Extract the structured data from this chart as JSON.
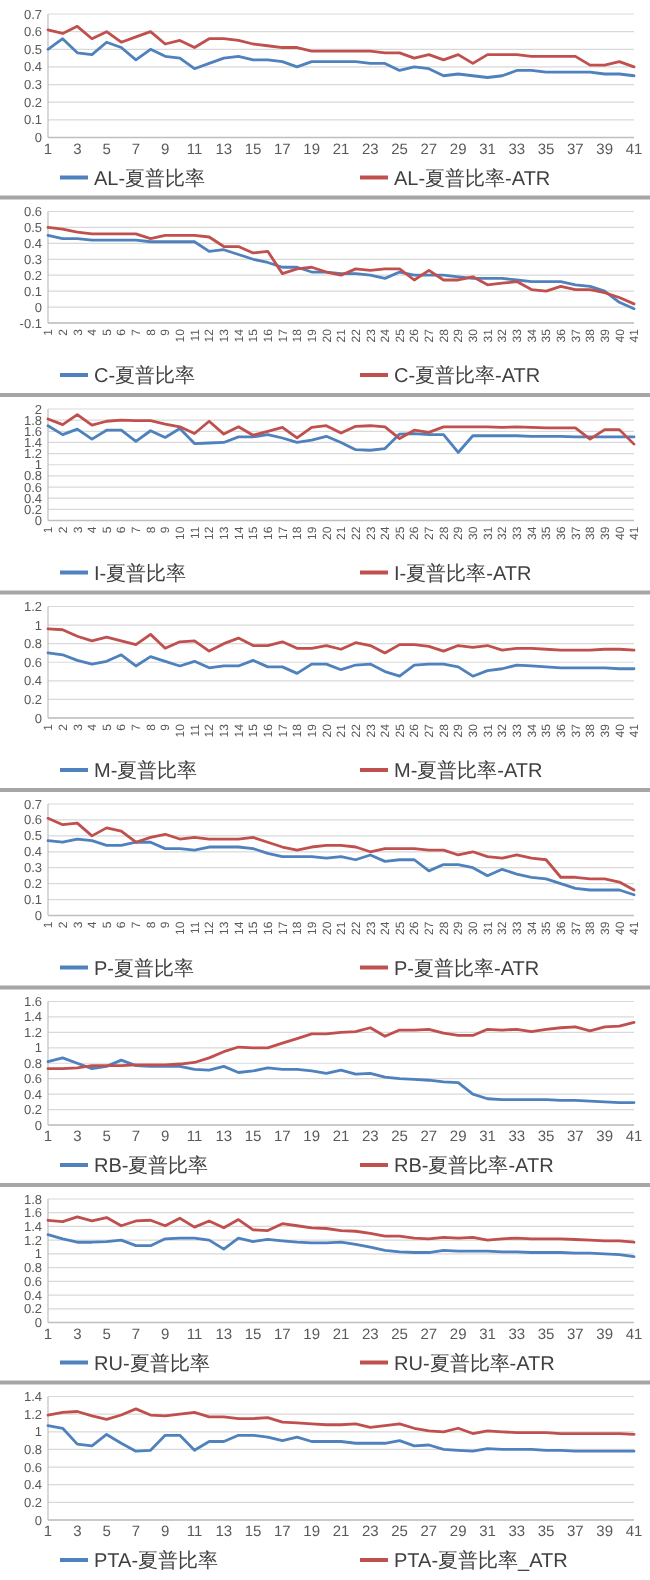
{
  "chart_data": [
    {
      "type": "line",
      "x": [
        1,
        2,
        3,
        4,
        5,
        6,
        7,
        8,
        9,
        10,
        11,
        12,
        13,
        14,
        15,
        16,
        17,
        18,
        19,
        20,
        21,
        22,
        23,
        24,
        25,
        26,
        27,
        28,
        29,
        30,
        31,
        32,
        33,
        34,
        35,
        36,
        37,
        38,
        39,
        40,
        41
      ],
      "xlim": [
        1,
        41
      ],
      "xticks": [
        1,
        3,
        5,
        7,
        9,
        11,
        13,
        15,
        17,
        19,
        21,
        23,
        25,
        27,
        29,
        31,
        33,
        35,
        37,
        39,
        41
      ],
      "ylim": [
        0,
        0.7
      ],
      "yticks": [
        0,
        0.1,
        0.2,
        0.3,
        0.4,
        0.5,
        0.6,
        0.7
      ],
      "grid": "y",
      "legend": "bottom",
      "series": [
        {
          "name": "AL-夏普比率",
          "color": "#4f81bd",
          "values": [
            0.5,
            0.56,
            0.48,
            0.47,
            0.54,
            0.51,
            0.44,
            0.5,
            0.46,
            0.45,
            0.39,
            0.42,
            0.45,
            0.46,
            0.44,
            0.44,
            0.43,
            0.4,
            0.43,
            0.43,
            0.43,
            0.43,
            0.42,
            0.42,
            0.38,
            0.4,
            0.39,
            0.35,
            0.36,
            0.35,
            0.34,
            0.35,
            0.38,
            0.38,
            0.37,
            0.37,
            0.37,
            0.37,
            0.36,
            0.36,
            0.35
          ]
        },
        {
          "name": "AL-夏普比率-ATR",
          "color": "#c0504d",
          "values": [
            0.61,
            0.59,
            0.63,
            0.56,
            0.6,
            0.54,
            0.57,
            0.6,
            0.53,
            0.55,
            0.51,
            0.56,
            0.56,
            0.55,
            0.53,
            0.52,
            0.51,
            0.51,
            0.49,
            0.49,
            0.49,
            0.49,
            0.49,
            0.48,
            0.48,
            0.45,
            0.47,
            0.44,
            0.47,
            0.42,
            0.47,
            0.47,
            0.47,
            0.46,
            0.46,
            0.46,
            0.46,
            0.41,
            0.41,
            0.43,
            0.4
          ]
        }
      ]
    },
    {
      "type": "line",
      "x": [
        1,
        2,
        3,
        4,
        5,
        6,
        7,
        8,
        9,
        10,
        11,
        12,
        13,
        14,
        15,
        16,
        17,
        18,
        19,
        20,
        21,
        22,
        23,
        24,
        25,
        26,
        27,
        28,
        29,
        30,
        31,
        32,
        33,
        34,
        35,
        36,
        37,
        38,
        39,
        40,
        41
      ],
      "xlim": [
        1,
        41
      ],
      "xticks": [
        1,
        2,
        3,
        4,
        5,
        6,
        7,
        8,
        9,
        10,
        11,
        12,
        13,
        14,
        15,
        16,
        17,
        18,
        19,
        20,
        21,
        22,
        23,
        24,
        25,
        26,
        27,
        28,
        29,
        30,
        31,
        32,
        33,
        34,
        35,
        36,
        37,
        38,
        39,
        40,
        41
      ],
      "ylim": [
        -0.1,
        0.6
      ],
      "yticks": [
        -0.1,
        0,
        0.1,
        0.2,
        0.3,
        0.4,
        0.5,
        0.6
      ],
      "grid": "y",
      "legend": "bottom",
      "series": [
        {
          "name": "C-夏普比率",
          "color": "#4f81bd",
          "values": [
            0.45,
            0.43,
            0.43,
            0.42,
            0.42,
            0.42,
            0.42,
            0.41,
            0.41,
            0.41,
            0.41,
            0.35,
            0.36,
            0.33,
            0.3,
            0.28,
            0.25,
            0.25,
            0.22,
            0.22,
            0.21,
            0.21,
            0.2,
            0.18,
            0.22,
            0.2,
            0.2,
            0.2,
            0.19,
            0.18,
            0.18,
            0.18,
            0.17,
            0.16,
            0.16,
            0.16,
            0.14,
            0.13,
            0.1,
            0.03,
            -0.01
          ]
        },
        {
          "name": "C-夏普比率-ATR",
          "color": "#c0504d",
          "values": [
            0.5,
            0.49,
            0.47,
            0.46,
            0.46,
            0.46,
            0.46,
            0.43,
            0.45,
            0.45,
            0.45,
            0.44,
            0.38,
            0.38,
            0.34,
            0.35,
            0.21,
            0.24,
            0.25,
            0.22,
            0.2,
            0.24,
            0.23,
            0.24,
            0.24,
            0.17,
            0.23,
            0.17,
            0.17,
            0.19,
            0.14,
            0.15,
            0.16,
            0.11,
            0.1,
            0.13,
            0.11,
            0.11,
            0.09,
            0.06,
            0.02
          ]
        }
      ]
    },
    {
      "type": "line",
      "x": [
        1,
        2,
        3,
        4,
        5,
        6,
        7,
        8,
        9,
        10,
        11,
        12,
        13,
        14,
        15,
        16,
        17,
        18,
        19,
        20,
        21,
        22,
        23,
        24,
        25,
        26,
        27,
        28,
        29,
        30,
        31,
        32,
        33,
        34,
        35,
        36,
        37,
        38,
        39,
        40,
        41
      ],
      "xlim": [
        1,
        41
      ],
      "xticks": [
        1,
        2,
        3,
        4,
        5,
        6,
        7,
        8,
        9,
        10,
        11,
        12,
        13,
        14,
        15,
        16,
        17,
        18,
        19,
        20,
        21,
        22,
        23,
        24,
        25,
        26,
        27,
        28,
        29,
        30,
        31,
        32,
        33,
        34,
        35,
        36,
        37,
        38,
        39,
        40,
        41
      ],
      "ylim": [
        0,
        2
      ],
      "yticks": [
        0,
        0.2,
        0.4,
        0.6,
        0.8,
        1,
        1.2,
        1.4,
        1.6,
        1.8,
        2
      ],
      "grid": "y",
      "legend": "bottom",
      "series": [
        {
          "name": "I-夏普比率",
          "color": "#4f81bd",
          "values": [
            1.7,
            1.54,
            1.64,
            1.46,
            1.62,
            1.62,
            1.42,
            1.61,
            1.49,
            1.65,
            1.38,
            1.39,
            1.4,
            1.5,
            1.5,
            1.54,
            1.48,
            1.4,
            1.44,
            1.51,
            1.4,
            1.27,
            1.26,
            1.29,
            1.55,
            1.56,
            1.54,
            1.54,
            1.22,
            1.52,
            1.52,
            1.52,
            1.52,
            1.51,
            1.51,
            1.51,
            1.5,
            1.5,
            1.5,
            1.5,
            1.5
          ]
        },
        {
          "name": "I-夏普比率-ATR",
          "color": "#c0504d",
          "values": [
            1.82,
            1.72,
            1.9,
            1.71,
            1.78,
            1.8,
            1.79,
            1.79,
            1.73,
            1.68,
            1.56,
            1.78,
            1.55,
            1.68,
            1.53,
            1.6,
            1.67,
            1.48,
            1.67,
            1.7,
            1.57,
            1.69,
            1.7,
            1.68,
            1.47,
            1.62,
            1.58,
            1.68,
            1.68,
            1.68,
            1.68,
            1.67,
            1.68,
            1.67,
            1.66,
            1.66,
            1.66,
            1.46,
            1.63,
            1.63,
            1.37
          ]
        }
      ]
    },
    {
      "type": "line",
      "x": [
        1,
        2,
        3,
        4,
        5,
        6,
        7,
        8,
        9,
        10,
        11,
        12,
        13,
        14,
        15,
        16,
        17,
        18,
        19,
        20,
        21,
        22,
        23,
        24,
        25,
        26,
        27,
        28,
        29,
        30,
        31,
        32,
        33,
        34,
        35,
        36,
        37,
        38,
        39,
        40,
        41
      ],
      "xlim": [
        1,
        41
      ],
      "xticks": [
        1,
        2,
        3,
        4,
        5,
        6,
        7,
        8,
        9,
        10,
        11,
        12,
        13,
        14,
        15,
        16,
        17,
        18,
        19,
        20,
        21,
        22,
        23,
        24,
        25,
        26,
        27,
        28,
        29,
        30,
        31,
        32,
        33,
        34,
        35,
        36,
        37,
        38,
        39,
        40,
        41
      ],
      "ylim": [
        0,
        1.2
      ],
      "yticks": [
        0,
        0.2,
        0.4,
        0.6,
        0.8,
        1,
        1.2
      ],
      "grid": "y",
      "legend": "bottom",
      "series": [
        {
          "name": "M-夏普比率",
          "color": "#4f81bd",
          "values": [
            0.7,
            0.68,
            0.62,
            0.58,
            0.61,
            0.68,
            0.56,
            0.66,
            0.61,
            0.56,
            0.61,
            0.54,
            0.56,
            0.56,
            0.62,
            0.55,
            0.55,
            0.48,
            0.58,
            0.58,
            0.52,
            0.57,
            0.58,
            0.5,
            0.45,
            0.57,
            0.58,
            0.58,
            0.55,
            0.45,
            0.51,
            0.53,
            0.57,
            0.56,
            0.55,
            0.54,
            0.54,
            0.54,
            0.54,
            0.53,
            0.53
          ]
        },
        {
          "name": "M-夏普比率-ATR",
          "color": "#c0504d",
          "values": [
            0.96,
            0.95,
            0.88,
            0.83,
            0.87,
            0.83,
            0.79,
            0.9,
            0.75,
            0.82,
            0.83,
            0.72,
            0.8,
            0.86,
            0.78,
            0.78,
            0.82,
            0.75,
            0.75,
            0.78,
            0.74,
            0.81,
            0.78,
            0.7,
            0.79,
            0.79,
            0.77,
            0.72,
            0.78,
            0.76,
            0.78,
            0.73,
            0.75,
            0.75,
            0.74,
            0.73,
            0.73,
            0.73,
            0.74,
            0.74,
            0.73
          ]
        }
      ]
    },
    {
      "type": "line",
      "x": [
        1,
        2,
        3,
        4,
        5,
        6,
        7,
        8,
        9,
        10,
        11,
        12,
        13,
        14,
        15,
        16,
        17,
        18,
        19,
        20,
        21,
        22,
        23,
        24,
        25,
        26,
        27,
        28,
        29,
        30,
        31,
        32,
        33,
        34,
        35,
        36,
        37,
        38,
        39,
        40,
        41
      ],
      "xlim": [
        1,
        41
      ],
      "xticks": [
        1,
        2,
        3,
        4,
        5,
        6,
        7,
        8,
        9,
        10,
        11,
        12,
        13,
        14,
        15,
        16,
        17,
        18,
        19,
        20,
        21,
        22,
        23,
        24,
        25,
        26,
        27,
        28,
        29,
        30,
        31,
        32,
        33,
        34,
        35,
        36,
        37,
        38,
        39,
        40,
        41
      ],
      "ylim": [
        0,
        0.7
      ],
      "yticks": [
        0,
        0.1,
        0.2,
        0.3,
        0.4,
        0.5,
        0.6,
        0.7
      ],
      "grid": "y",
      "legend": "bottom",
      "series": [
        {
          "name": "P-夏普比率",
          "color": "#4f81bd",
          "values": [
            0.47,
            0.46,
            0.48,
            0.47,
            0.44,
            0.44,
            0.46,
            0.46,
            0.42,
            0.42,
            0.41,
            0.43,
            0.43,
            0.43,
            0.42,
            0.39,
            0.37,
            0.37,
            0.37,
            0.36,
            0.37,
            0.35,
            0.38,
            0.34,
            0.35,
            0.35,
            0.28,
            0.32,
            0.32,
            0.3,
            0.25,
            0.29,
            0.26,
            0.24,
            0.23,
            0.2,
            0.17,
            0.16,
            0.16,
            0.16,
            0.13
          ]
        },
        {
          "name": "P-夏普比率-ATR",
          "color": "#c0504d",
          "values": [
            0.61,
            0.57,
            0.58,
            0.5,
            0.55,
            0.53,
            0.46,
            0.49,
            0.51,
            0.48,
            0.49,
            0.48,
            0.48,
            0.48,
            0.49,
            0.46,
            0.43,
            0.41,
            0.43,
            0.44,
            0.44,
            0.43,
            0.4,
            0.42,
            0.42,
            0.42,
            0.41,
            0.41,
            0.38,
            0.4,
            0.37,
            0.36,
            0.38,
            0.36,
            0.35,
            0.24,
            0.24,
            0.23,
            0.23,
            0.21,
            0.16
          ]
        }
      ]
    },
    {
      "type": "line",
      "x": [
        1,
        2,
        3,
        4,
        5,
        6,
        7,
        8,
        9,
        10,
        11,
        12,
        13,
        14,
        15,
        16,
        17,
        18,
        19,
        20,
        21,
        22,
        23,
        24,
        25,
        26,
        27,
        28,
        29,
        30,
        31,
        32,
        33,
        34,
        35,
        36,
        37,
        38,
        39,
        40,
        41
      ],
      "xlim": [
        1,
        41
      ],
      "xticks": [
        1,
        3,
        5,
        7,
        9,
        11,
        13,
        15,
        17,
        19,
        21,
        23,
        25,
        27,
        29,
        31,
        33,
        35,
        37,
        39,
        41
      ],
      "ylim": [
        0,
        1.6
      ],
      "yticks": [
        0,
        0.2,
        0.4,
        0.6,
        0.8,
        1,
        1.2,
        1.4,
        1.6
      ],
      "grid": "y",
      "legend": "bottom",
      "series": [
        {
          "name": "RB-夏普比率",
          "color": "#4f81bd",
          "values": [
            0.82,
            0.87,
            0.8,
            0.73,
            0.76,
            0.84,
            0.77,
            0.76,
            0.76,
            0.76,
            0.72,
            0.71,
            0.76,
            0.68,
            0.7,
            0.74,
            0.72,
            0.72,
            0.7,
            0.67,
            0.71,
            0.66,
            0.67,
            0.62,
            0.6,
            0.59,
            0.58,
            0.56,
            0.55,
            0.4,
            0.34,
            0.33,
            0.33,
            0.33,
            0.33,
            0.32,
            0.32,
            0.31,
            0.3,
            0.29,
            0.29
          ]
        },
        {
          "name": "RB-夏普比率-ATR",
          "color": "#c0504d",
          "values": [
            0.73,
            0.73,
            0.74,
            0.77,
            0.77,
            0.77,
            0.78,
            0.78,
            0.78,
            0.79,
            0.81,
            0.87,
            0.95,
            1.01,
            1.0,
            1.0,
            1.06,
            1.12,
            1.18,
            1.18,
            1.2,
            1.21,
            1.26,
            1.15,
            1.23,
            1.23,
            1.24,
            1.19,
            1.16,
            1.16,
            1.24,
            1.23,
            1.24,
            1.21,
            1.24,
            1.26,
            1.27,
            1.22,
            1.27,
            1.28,
            1.33
          ]
        }
      ]
    },
    {
      "type": "line",
      "x": [
        1,
        2,
        3,
        4,
        5,
        6,
        7,
        8,
        9,
        10,
        11,
        12,
        13,
        14,
        15,
        16,
        17,
        18,
        19,
        20,
        21,
        22,
        23,
        24,
        25,
        26,
        27,
        28,
        29,
        30,
        31,
        32,
        33,
        34,
        35,
        36,
        37,
        38,
        39,
        40,
        41
      ],
      "xlim": [
        1,
        41
      ],
      "xticks": [
        1,
        3,
        5,
        7,
        9,
        11,
        13,
        15,
        17,
        19,
        21,
        23,
        25,
        27,
        29,
        31,
        33,
        35,
        37,
        39,
        41
      ],
      "ylim": [
        0,
        1.8
      ],
      "yticks": [
        0,
        0.2,
        0.4,
        0.6,
        0.8,
        1,
        1.2,
        1.4,
        1.6,
        1.8
      ],
      "grid": "y",
      "legend": "bottom",
      "series": [
        {
          "name": "RU-夏普比率",
          "color": "#4f81bd",
          "values": [
            1.28,
            1.22,
            1.17,
            1.17,
            1.18,
            1.2,
            1.12,
            1.12,
            1.22,
            1.23,
            1.23,
            1.2,
            1.07,
            1.23,
            1.18,
            1.21,
            1.19,
            1.17,
            1.16,
            1.16,
            1.17,
            1.14,
            1.1,
            1.05,
            1.03,
            1.02,
            1.02,
            1.05,
            1.04,
            1.04,
            1.04,
            1.03,
            1.03,
            1.02,
            1.02,
            1.02,
            1.01,
            1.01,
            1.0,
            0.99,
            0.96
          ]
        },
        {
          "name": "RU-夏普比率-ATR",
          "color": "#c0504d",
          "values": [
            1.49,
            1.47,
            1.54,
            1.48,
            1.53,
            1.41,
            1.48,
            1.49,
            1.41,
            1.52,
            1.39,
            1.48,
            1.38,
            1.5,
            1.35,
            1.34,
            1.44,
            1.41,
            1.38,
            1.37,
            1.34,
            1.33,
            1.3,
            1.26,
            1.26,
            1.23,
            1.22,
            1.24,
            1.23,
            1.24,
            1.2,
            1.22,
            1.23,
            1.22,
            1.22,
            1.22,
            1.21,
            1.2,
            1.19,
            1.19,
            1.17
          ]
        }
      ]
    },
    {
      "type": "line",
      "x": [
        1,
        2,
        3,
        4,
        5,
        6,
        7,
        8,
        9,
        10,
        11,
        12,
        13,
        14,
        15,
        16,
        17,
        18,
        19,
        20,
        21,
        22,
        23,
        24,
        25,
        26,
        27,
        28,
        29,
        30,
        31,
        32,
        33,
        34,
        35,
        36,
        37,
        38,
        39,
        40,
        41
      ],
      "xlim": [
        1,
        41
      ],
      "xticks": [
        1,
        3,
        5,
        7,
        9,
        11,
        13,
        15,
        17,
        19,
        21,
        23,
        25,
        27,
        29,
        31,
        33,
        35,
        37,
        39,
        41
      ],
      "ylim": [
        0,
        1.4
      ],
      "yticks": [
        0,
        0.2,
        0.4,
        0.6,
        0.8,
        1,
        1.2,
        1.4
      ],
      "grid": "y",
      "legend": "bottom",
      "series": [
        {
          "name": "PTA-夏普比率",
          "color": "#4f81bd",
          "values": [
            1.07,
            1.04,
            0.86,
            0.84,
            0.97,
            0.87,
            0.78,
            0.79,
            0.96,
            0.96,
            0.79,
            0.89,
            0.89,
            0.96,
            0.96,
            0.94,
            0.9,
            0.94,
            0.89,
            0.89,
            0.89,
            0.87,
            0.87,
            0.87,
            0.9,
            0.84,
            0.85,
            0.8,
            0.79,
            0.78,
            0.81,
            0.8,
            0.8,
            0.8,
            0.79,
            0.79,
            0.78,
            0.78,
            0.78,
            0.78,
            0.78
          ]
        },
        {
          "name": "PTA-夏普比率_ATR",
          "color": "#c0504d",
          "values": [
            1.19,
            1.22,
            1.23,
            1.18,
            1.14,
            1.19,
            1.26,
            1.19,
            1.18,
            1.2,
            1.22,
            1.17,
            1.17,
            1.15,
            1.15,
            1.16,
            1.11,
            1.1,
            1.09,
            1.08,
            1.08,
            1.09,
            1.05,
            1.07,
            1.09,
            1.04,
            1.01,
            1.0,
            1.04,
            0.98,
            1.01,
            1.0,
            0.99,
            0.99,
            0.99,
            0.98,
            0.98,
            0.98,
            0.98,
            0.98,
            0.97
          ]
        }
      ]
    }
  ]
}
